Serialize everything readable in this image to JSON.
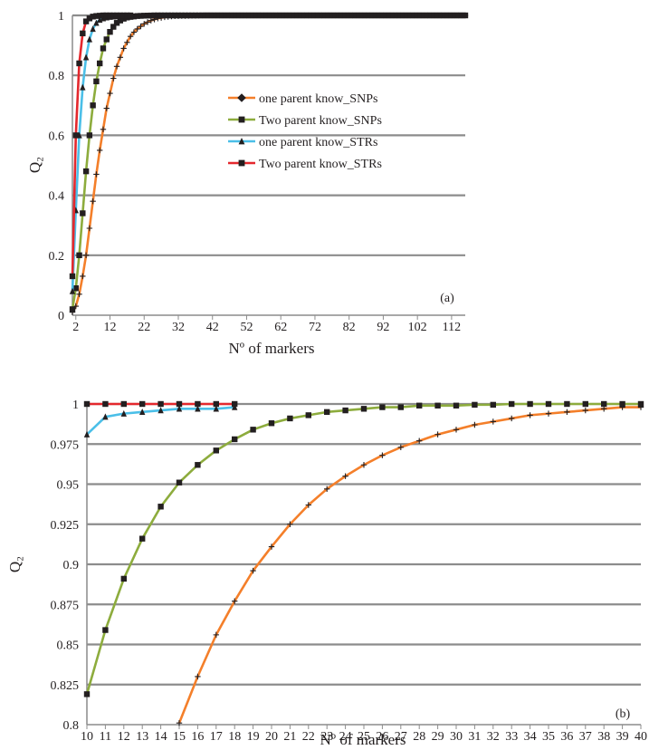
{
  "chart_data": [
    {
      "panel_label": "(a)",
      "type": "line",
      "xlabel": "Nº of markers",
      "ylabel": "Q₂",
      "xlim": [
        1,
        116
      ],
      "ylim": [
        0,
        1
      ],
      "x_ticks": [
        2,
        12,
        22,
        32,
        42,
        52,
        62,
        72,
        82,
        92,
        102,
        112
      ],
      "y_ticks": [
        0,
        0.2,
        0.4,
        0.6,
        0.8,
        1
      ],
      "y_tick_labels": [
        "0",
        "0.2",
        "0.4",
        "0.6",
        "0.8",
        "1"
      ],
      "grid": "horizontal",
      "legend_position": "center-right",
      "series": [
        {
          "name": "one parent know_SNPs",
          "color": "#f47f2a",
          "marker": "cross",
          "x_end": 116,
          "points": [
            [
              1,
              0.01
            ],
            [
              2,
              0.03
            ],
            [
              3,
              0.07
            ],
            [
              4,
              0.13
            ],
            [
              5,
              0.2
            ],
            [
              6,
              0.29
            ],
            [
              7,
              0.38
            ],
            [
              8,
              0.47
            ],
            [
              9,
              0.55
            ],
            [
              10,
              0.62
            ],
            [
              11,
              0.69
            ],
            [
              12,
              0.74
            ],
            [
              13,
              0.79
            ],
            [
              14,
              0.83
            ],
            [
              15,
              0.86
            ],
            [
              16,
              0.89
            ],
            [
              17,
              0.91
            ],
            [
              18,
              0.93
            ],
            [
              19,
              0.944
            ],
            [
              20,
              0.955
            ],
            [
              22,
              0.972
            ],
            [
              24,
              0.983
            ],
            [
              26,
              0.99
            ],
            [
              28,
              0.994
            ],
            [
              30,
              0.997
            ],
            [
              32,
              0.998
            ],
            [
              36,
              0.999
            ],
            [
              40,
              1
            ]
          ]
        },
        {
          "name": "Two parent know_SNPs",
          "color": "#8dac3d",
          "marker": "square",
          "x_end": 116,
          "points": [
            [
              1,
              0.02
            ],
            [
              2,
              0.09
            ],
            [
              3,
              0.2
            ],
            [
              4,
              0.34
            ],
            [
              5,
              0.48
            ],
            [
              6,
              0.6
            ],
            [
              7,
              0.7
            ],
            [
              8,
              0.78
            ],
            [
              9,
              0.84
            ],
            [
              10,
              0.89
            ],
            [
              11,
              0.92
            ],
            [
              12,
              0.945
            ],
            [
              13,
              0.962
            ],
            [
              14,
              0.975
            ],
            [
              15,
              0.983
            ],
            [
              16,
              0.989
            ],
            [
              17,
              0.993
            ],
            [
              18,
              0.995
            ],
            [
              20,
              0.998
            ],
            [
              22,
              0.999
            ],
            [
              25,
              1
            ]
          ]
        },
        {
          "name": "one parent know_STRs",
          "color": "#4bbfe8",
          "marker": "triangle",
          "x_end": 18,
          "points": [
            [
              1,
              0.08
            ],
            [
              2,
              0.35
            ],
            [
              3,
              0.6
            ],
            [
              4,
              0.76
            ],
            [
              5,
              0.86
            ],
            [
              6,
              0.92
            ],
            [
              7,
              0.955
            ],
            [
              8,
              0.975
            ],
            [
              9,
              0.985
            ],
            [
              10,
              0.99
            ],
            [
              11,
              0.993
            ],
            [
              12,
              0.995
            ],
            [
              13,
              0.996
            ],
            [
              14,
              0.997
            ],
            [
              15,
              0.998
            ],
            [
              16,
              0.998
            ],
            [
              17,
              0.998
            ],
            [
              18,
              0.998
            ]
          ]
        },
        {
          "name": "Two parent know_STRs",
          "color": "#e4282d",
          "marker": "square",
          "x_end": 18,
          "points": [
            [
              1,
              0.13
            ],
            [
              2,
              0.6
            ],
            [
              3,
              0.84
            ],
            [
              4,
              0.94
            ],
            [
              5,
              0.98
            ],
            [
              6,
              0.99
            ],
            [
              7,
              0.996
            ],
            [
              8,
              0.998
            ],
            [
              9,
              0.999
            ],
            [
              10,
              1
            ],
            [
              11,
              1
            ],
            [
              12,
              1
            ],
            [
              13,
              1
            ],
            [
              14,
              1
            ],
            [
              15,
              1
            ],
            [
              16,
              1
            ],
            [
              17,
              1
            ],
            [
              18,
              1
            ]
          ]
        }
      ]
    },
    {
      "panel_label": "(b)",
      "type": "line",
      "xlabel": "Nº of markers",
      "ylabel": "Q₂",
      "xlim": [
        10,
        40
      ],
      "ylim": [
        0.8,
        1
      ],
      "x_ticks": [
        10,
        11,
        12,
        13,
        14,
        15,
        16,
        17,
        18,
        19,
        20,
        21,
        22,
        23,
        24,
        25,
        26,
        27,
        28,
        29,
        30,
        31,
        32,
        33,
        34,
        35,
        36,
        37,
        38,
        39,
        40
      ],
      "y_ticks": [
        0.8,
        0.825,
        0.85,
        0.875,
        0.9,
        0.925,
        0.95,
        0.975,
        1
      ],
      "y_tick_labels": [
        "0.8",
        "0.825",
        "0.85",
        "0.875",
        "0.9",
        "0.925",
        "0.95",
        "0.975",
        "1"
      ],
      "grid": "horizontal",
      "series": [
        {
          "name": "one parent know_SNPs",
          "color": "#f47f2a",
          "marker": "cross",
          "points": [
            [
              15,
              0.801
            ],
            [
              16,
              0.83
            ],
            [
              17,
              0.856
            ],
            [
              18,
              0.877
            ],
            [
              19,
              0.896
            ],
            [
              20,
              0.911
            ],
            [
              21,
              0.925
            ],
            [
              22,
              0.937
            ],
            [
              23,
              0.947
            ],
            [
              24,
              0.955
            ],
            [
              25,
              0.962
            ],
            [
              26,
              0.968
            ],
            [
              27,
              0.973
            ],
            [
              28,
              0.977
            ],
            [
              29,
              0.981
            ],
            [
              30,
              0.984
            ],
            [
              31,
              0.987
            ],
            [
              32,
              0.989
            ],
            [
              33,
              0.991
            ],
            [
              34,
              0.993
            ],
            [
              35,
              0.994
            ],
            [
              36,
              0.995
            ],
            [
              37,
              0.996
            ],
            [
              38,
              0.997
            ],
            [
              39,
              0.998
            ],
            [
              40,
              0.998
            ]
          ]
        },
        {
          "name": "Two parent know_SNPs",
          "color": "#8dac3d",
          "marker": "square",
          "points": [
            [
              10,
              0.819
            ],
            [
              11,
              0.859
            ],
            [
              12,
              0.891
            ],
            [
              13,
              0.916
            ],
            [
              14,
              0.936
            ],
            [
              15,
              0.951
            ],
            [
              16,
              0.962
            ],
            [
              17,
              0.971
            ],
            [
              18,
              0.978
            ],
            [
              19,
              0.984
            ],
            [
              20,
              0.988
            ],
            [
              21,
              0.991
            ],
            [
              22,
              0.993
            ],
            [
              23,
              0.995
            ],
            [
              24,
              0.996
            ],
            [
              25,
              0.997
            ],
            [
              26,
              0.998
            ],
            [
              27,
              0.998
            ],
            [
              28,
              0.999
            ],
            [
              29,
              0.999
            ],
            [
              30,
              0.999
            ],
            [
              31,
              0.9995
            ],
            [
              32,
              0.9995
            ],
            [
              33,
              1
            ],
            [
              34,
              1
            ],
            [
              35,
              1
            ],
            [
              36,
              1
            ],
            [
              37,
              1
            ],
            [
              38,
              1
            ],
            [
              39,
              1
            ],
            [
              40,
              1
            ]
          ]
        },
        {
          "name": "one parent know_STRs",
          "color": "#4bbfe8",
          "marker": "triangle",
          "points": [
            [
              10,
              0.981
            ],
            [
              11,
              0.992
            ],
            [
              12,
              0.994
            ],
            [
              13,
              0.995
            ],
            [
              14,
              0.996
            ],
            [
              15,
              0.997
            ],
            [
              16,
              0.997
            ],
            [
              17,
              0.997
            ],
            [
              18,
              0.998
            ]
          ]
        },
        {
          "name": "Two parent know_STRs",
          "color": "#e4282d",
          "marker": "square",
          "points": [
            [
              10,
              1
            ],
            [
              11,
              1
            ],
            [
              12,
              1
            ],
            [
              13,
              1
            ],
            [
              14,
              1
            ],
            [
              15,
              1
            ],
            [
              16,
              1
            ],
            [
              17,
              1
            ],
            [
              18,
              1
            ]
          ]
        }
      ]
    }
  ]
}
